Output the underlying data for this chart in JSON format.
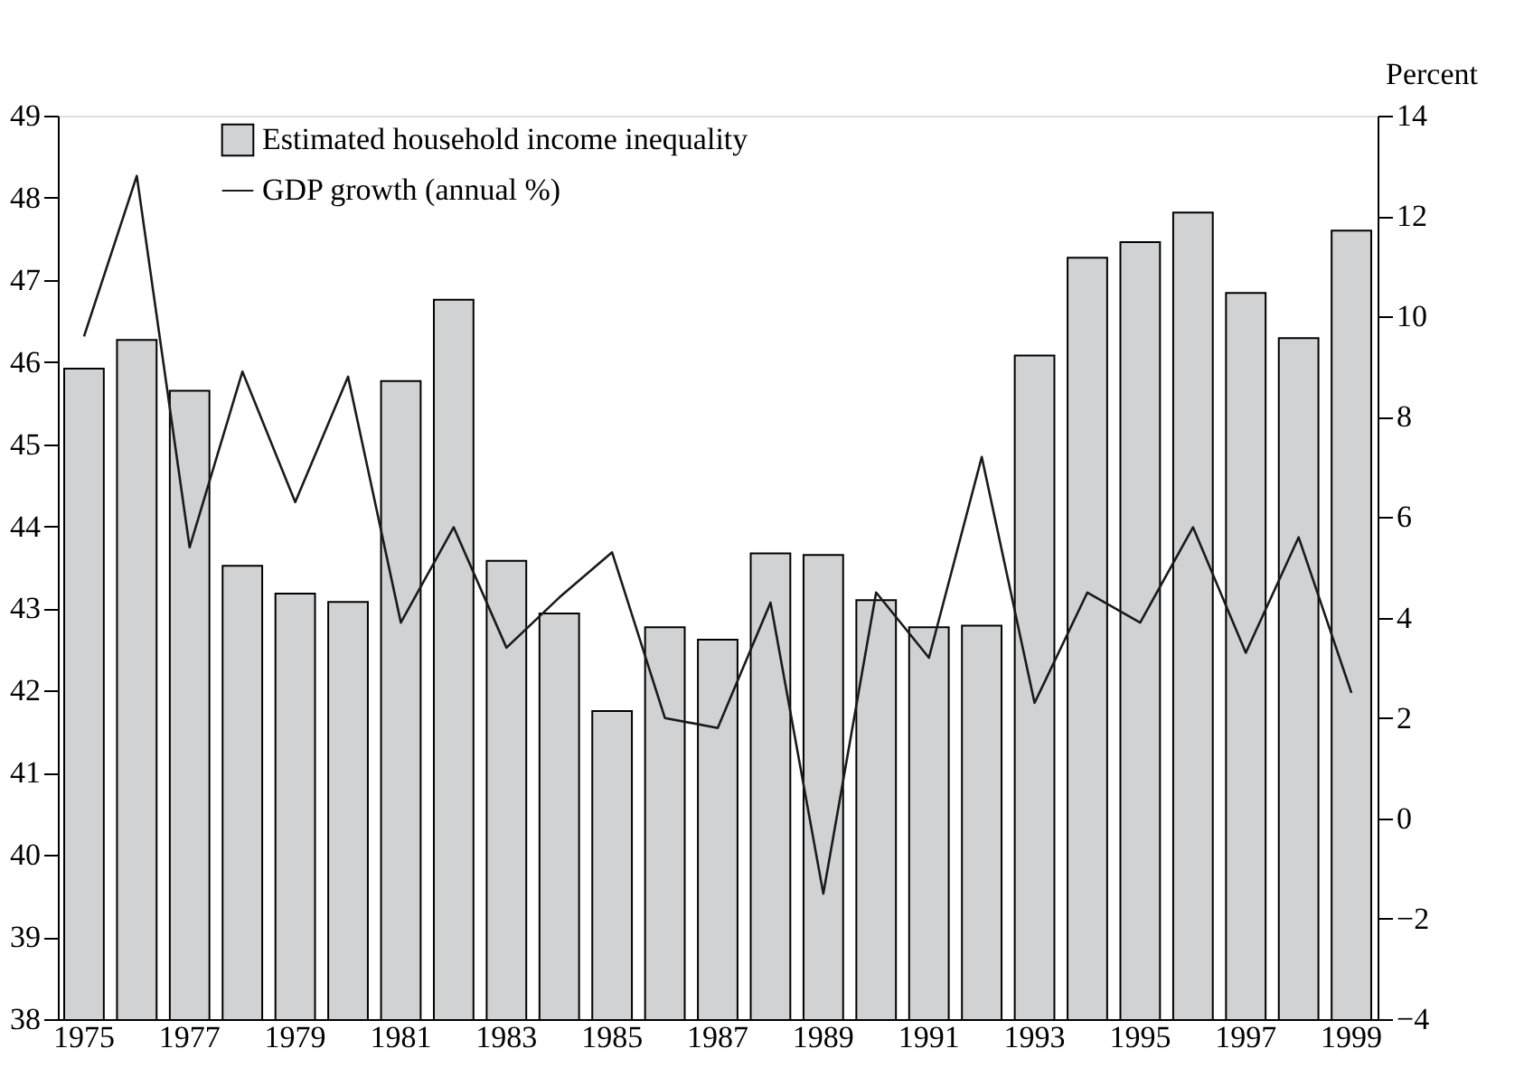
{
  "chart_data": {
    "type": "bar",
    "categories": [
      "1975",
      null,
      "1977",
      null,
      "1979",
      null,
      "1981",
      null,
      "1983",
      null,
      "1985",
      null,
      "1987",
      null,
      "1989",
      null,
      "1991",
      null,
      "1993",
      null,
      "1995",
      null,
      "1997",
      null,
      "1999"
    ],
    "series": [
      {
        "name": "Estimated household income inequality",
        "color": "#d1d2d4",
        "values": [
          45.92,
          46.27,
          45.65,
          43.52,
          43.18,
          43.08,
          45.77,
          46.76,
          43.58,
          42.94,
          41.75,
          42.77,
          42.62,
          43.67,
          43.65,
          43.1,
          42.77,
          42.79,
          46.08,
          47.27,
          47.46,
          47.82,
          46.84,
          46.29,
          47.6
        ]
      },
      {
        "name": "GDP growth (annual %)",
        "type": "line",
        "axis": "y2",
        "color": "#1a1a1a",
        "values": [
          9.6,
          12.8,
          5.4,
          8.9,
          6.3,
          8.8,
          3.9,
          5.8,
          3.4,
          4.4,
          5.3,
          2.0,
          1.8,
          4.3,
          -1.5,
          4.5,
          3.2,
          7.2,
          2.3,
          4.5,
          3.9,
          5.8,
          3.3,
          5.6,
          2.5
        ]
      }
    ],
    "ylim": [
      38,
      49
    ],
    "yticks": [
      38,
      39,
      40,
      41,
      42,
      43,
      44,
      45,
      46,
      47,
      48,
      49
    ],
    "y2label": "Percent",
    "y2lim": [
      -4,
      14
    ],
    "y2ticks": [
      {
        "value": -4,
        "label": "−4"
      },
      {
        "value": -2,
        "label": "−2"
      },
      0,
      2,
      4,
      6,
      8,
      10,
      12,
      14
    ],
    "grid": false,
    "legend": "top left",
    "line_style": "solid",
    "marker": "none"
  }
}
